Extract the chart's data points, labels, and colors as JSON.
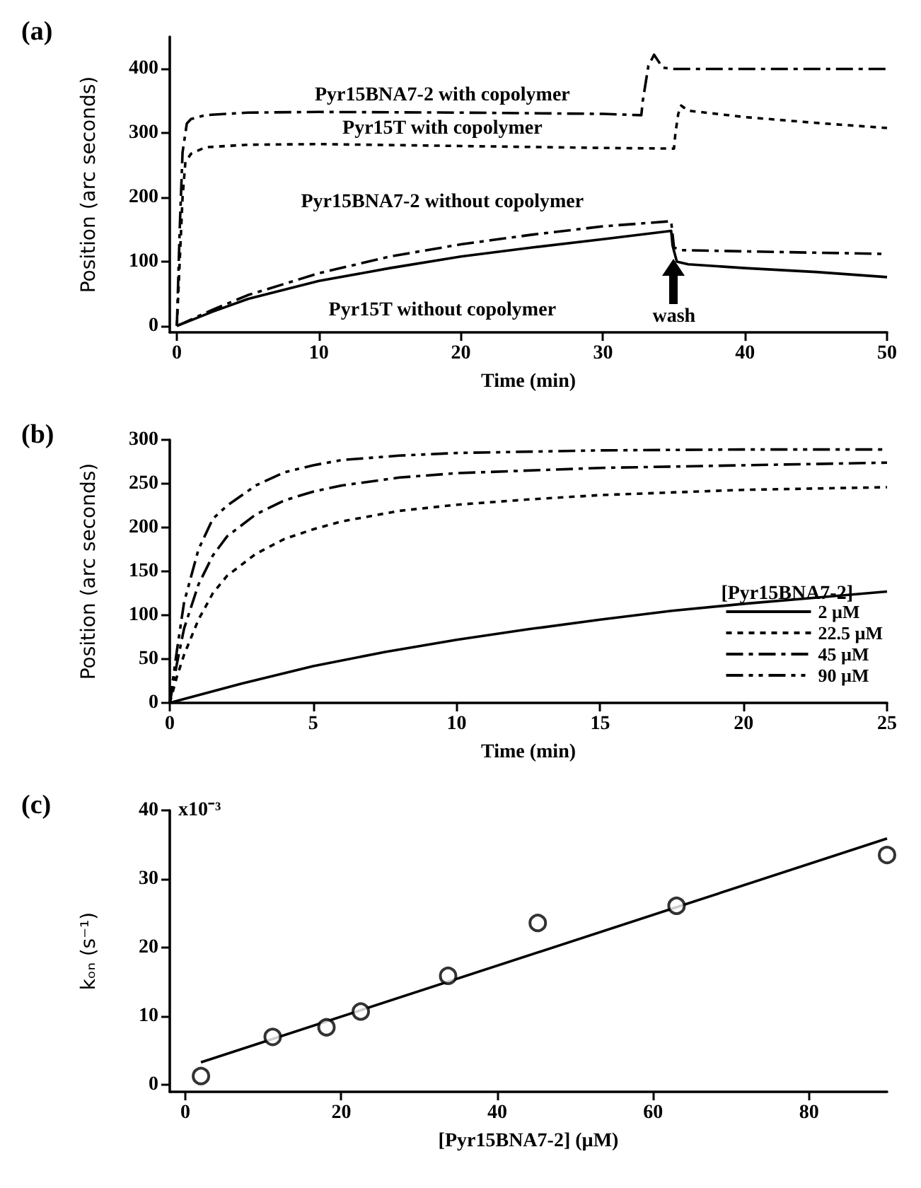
{
  "chart_data": [
    {
      "type": "line",
      "title": "(a)",
      "xlabel": "Time (min)",
      "ylabel": "Position (arc seconds)",
      "xlim": [
        -0.5,
        50
      ],
      "ylim": [
        -10,
        450
      ],
      "xticks": [
        0,
        10,
        20,
        30,
        40,
        50
      ],
      "yticks": [
        0,
        100,
        200,
        300,
        400
      ],
      "series": [
        {
          "name": "Pyr15BNA7-2 with copolymer",
          "color": "#000000",
          "line_style": "dashdot",
          "x": [
            0,
            0.2,
            0.4,
            0.7,
            1,
            2,
            5,
            10,
            20,
            30,
            32.7,
            32.8,
            33.2,
            33.6,
            34.2,
            35,
            40,
            45,
            50
          ],
          "values": [
            0,
            150,
            270,
            315,
            322,
            328,
            332,
            333,
            332,
            330,
            328,
            350,
            405,
            422,
            402,
            400,
            400,
            400,
            400
          ]
        },
        {
          "name": "Pyr15T with copolymer",
          "color": "#000000",
          "line_style": "dashed",
          "x": [
            0,
            0.2,
            0.4,
            0.6,
            1,
            2,
            5,
            10,
            20,
            30,
            35,
            35.1,
            35.3,
            35.5,
            36,
            40,
            45,
            50
          ],
          "values": [
            0,
            100,
            200,
            255,
            268,
            278,
            282,
            283,
            280,
            277,
            276,
            300,
            330,
            343,
            335,
            325,
            316,
            308
          ]
        },
        {
          "name": "Pyr15BNA7-2 without copolymer",
          "color": "#000000",
          "line_style": "dashdot",
          "x": [
            0,
            2.5,
            5,
            10,
            15,
            20,
            25,
            30,
            34.8,
            35,
            35.5,
            40,
            45,
            50
          ],
          "values": [
            0,
            25,
            48,
            82,
            108,
            127,
            142,
            155,
            163,
            122,
            118,
            116,
            114,
            112
          ]
        },
        {
          "name": "Pyr15T without copolymer",
          "color": "#000000",
          "line_style": "solid",
          "x": [
            0,
            2.5,
            5,
            10,
            15,
            20,
            25,
            30,
            34.8,
            34.9,
            35.2,
            36,
            40,
            45,
            50
          ],
          "values": [
            0,
            22,
            42,
            70,
            90,
            108,
            122,
            135,
            148,
            125,
            100,
            96,
            90,
            84,
            76
          ]
        }
      ],
      "annotations": [
        {
          "text": "wash",
          "x": 35,
          "y": 105
        }
      ]
    },
    {
      "type": "line",
      "title": "(b)",
      "xlabel": "Time (min)",
      "ylabel": "Position (arc seconds)",
      "xlim": [
        0,
        25
      ],
      "ylim": [
        0,
        300
      ],
      "xticks": [
        0,
        5,
        10,
        15,
        20,
        25
      ],
      "yticks": [
        0,
        50,
        100,
        150,
        200,
        250,
        300
      ],
      "legend": "bottom right",
      "legend_title": "[Pyr15BNA7-2]",
      "series": [
        {
          "name": "2 µM",
          "color": "#000000",
          "line_style": "solid",
          "x": [
            0,
            2.5,
            5,
            7.5,
            10,
            12.5,
            15,
            17.5,
            20,
            22.5,
            25
          ],
          "values": [
            0,
            22,
            42,
            58,
            72,
            84,
            95,
            105,
            113,
            120,
            127
          ]
        },
        {
          "name": "22.5 µM",
          "color": "#000000",
          "line_style": "dashed",
          "x": [
            0,
            0.25,
            0.5,
            1,
            1.5,
            2,
            3,
            4,
            5,
            6,
            8,
            10,
            12.5,
            15,
            17.5,
            20,
            25
          ],
          "values": [
            0,
            30,
            55,
            95,
            125,
            145,
            170,
            187,
            198,
            207,
            219,
            226,
            232,
            237,
            240,
            243,
            246
          ]
        },
        {
          "name": "45 µM",
          "color": "#000000",
          "line_style": "dashdot",
          "x": [
            0,
            0.25,
            0.5,
            1,
            1.5,
            2,
            3,
            4,
            5,
            6,
            8,
            10,
            15,
            20,
            25
          ],
          "values": [
            0,
            45,
            85,
            135,
            168,
            190,
            215,
            231,
            241,
            248,
            257,
            262,
            268,
            271,
            274
          ]
        },
        {
          "name": "90 µM",
          "color": "#000000",
          "line_style": "dashdotdot",
          "x": [
            0,
            0.25,
            0.5,
            1,
            1.5,
            2,
            3,
            4,
            5,
            6,
            8,
            10,
            15,
            20,
            25
          ],
          "values": [
            0,
            60,
            115,
            175,
            210,
            225,
            248,
            263,
            271,
            277,
            282,
            285,
            288,
            289,
            289
          ]
        }
      ]
    },
    {
      "type": "scatter",
      "title": "(c)",
      "xlabel": "[Pyr15BNA7-2] (µM)",
      "ylabel": "kₒₙ (s⁻¹)",
      "xlim": [
        -2,
        90
      ],
      "ylim": [
        -1,
        40
      ],
      "xticks": [
        0,
        20,
        40,
        60,
        80
      ],
      "yticks": [
        0,
        10,
        20,
        30,
        40
      ],
      "annotations": [
        "x10⁻³"
      ],
      "marker": "circle",
      "series": [
        {
          "color": "#000000",
          "x": [
            2,
            11.2,
            18.1,
            22.5,
            33.7,
            45.2,
            63,
            90
          ],
          "values": [
            1.3,
            7.0,
            8.4,
            10.7,
            15.9,
            23.6,
            26.1,
            33.5
          ]
        },
        {
          "type": "line",
          "marker": "none",
          "color": "#000000",
          "line_style": "solid",
          "x": [
            2,
            90
          ],
          "values": [
            3.3,
            35.9
          ]
        }
      ]
    }
  ]
}
